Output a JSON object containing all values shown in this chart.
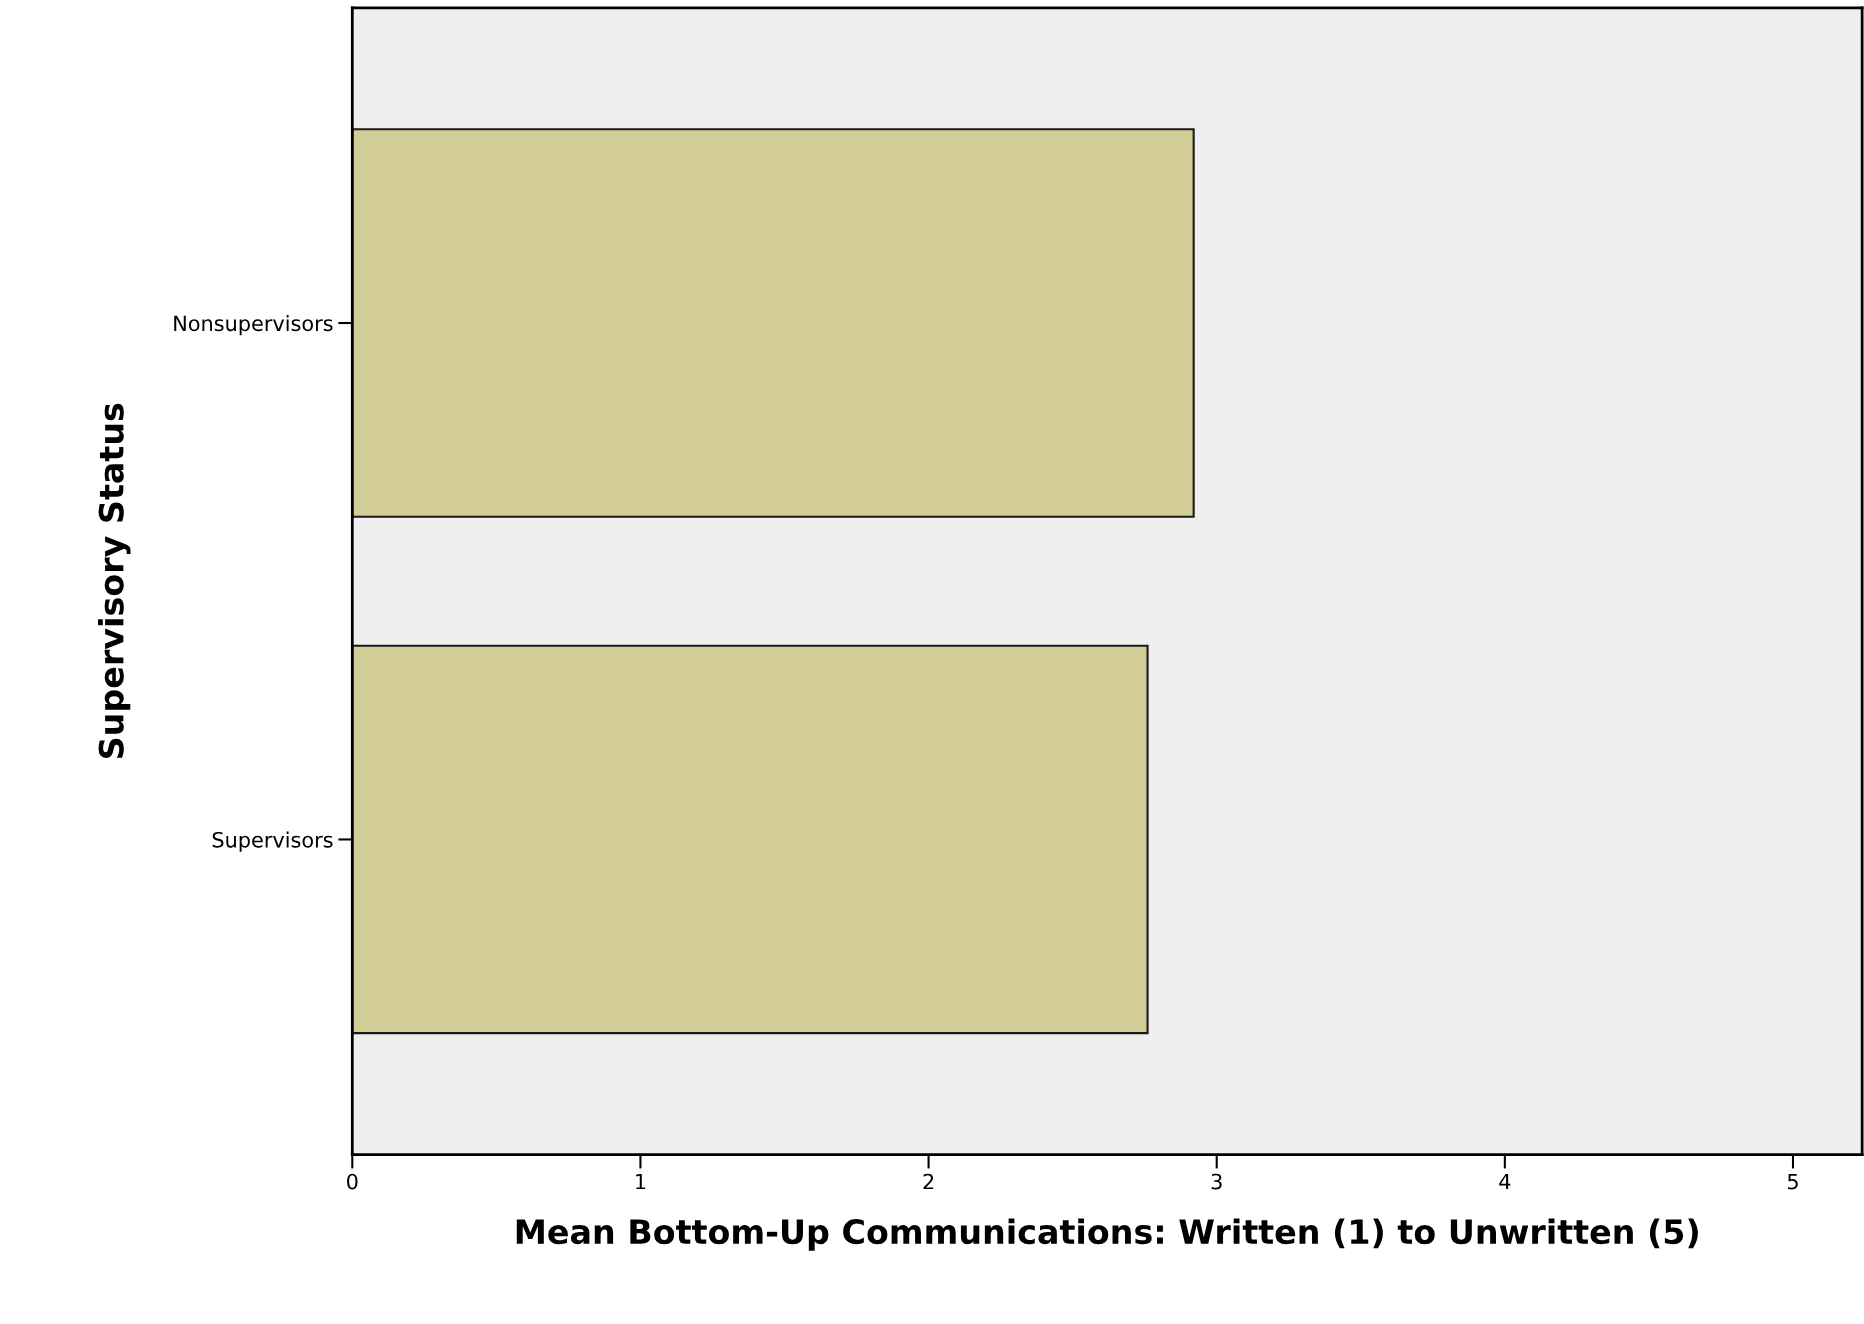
{
  "chart_data": {
    "type": "bar",
    "orientation": "horizontal",
    "xlabel": "Mean Bottom-Up Communications: Written (1) to Unwritten (5)",
    "ylabel": "Supervisory Status",
    "categories": [
      "Nonsupervisors",
      "Supervisors"
    ],
    "values": [
      2.92,
      2.76
    ],
    "color": "#d3cd97",
    "xlim": [
      0,
      5.24
    ],
    "xticks": [
      0,
      1,
      2,
      3,
      4,
      5
    ],
    "grid": false
  }
}
